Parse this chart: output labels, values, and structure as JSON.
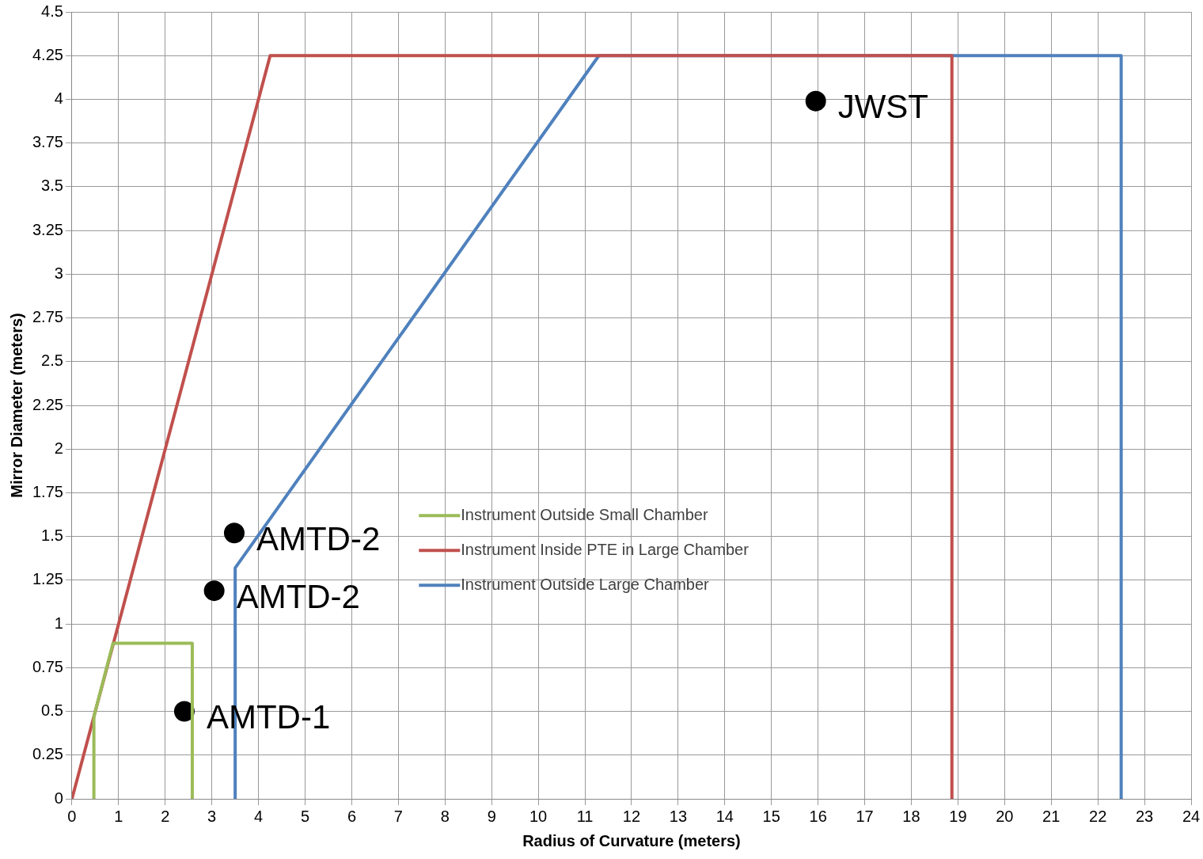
{
  "chart_data": {
    "type": "line",
    "xlabel": "Radius of Curvature (meters)",
    "ylabel": "Mirror Diameter (meters)",
    "xlim": [
      0,
      24
    ],
    "xticks": [
      0,
      1,
      2,
      3,
      4,
      5,
      6,
      7,
      8,
      9,
      10,
      11,
      12,
      13,
      14,
      15,
      16,
      17,
      18,
      19,
      20,
      21,
      22,
      23,
      24
    ],
    "ylim": [
      0,
      4.5
    ],
    "yticks": [
      0,
      0.25,
      0.5,
      0.75,
      1,
      1.25,
      1.5,
      1.75,
      2,
      2.25,
      2.5,
      2.75,
      3,
      3.25,
      3.5,
      3.75,
      4,
      4.25,
      4.5
    ],
    "grid": true,
    "legend": "center",
    "marker": "none",
    "line_style": "solid",
    "series": [
      {
        "name": "Instrument Outside Small Chamber",
        "color": "#9bbb59",
        "x": [
          0.47,
          0.47,
          0.88,
          2.58,
          2.58
        ],
        "values": [
          0,
          0.47,
          0.89,
          0.89,
          0
        ]
      },
      {
        "name": "Instrument Inside PTE in Large Chamber",
        "color": "#c0504d",
        "x": [
          0,
          4.25,
          18.87,
          18.87
        ],
        "values": [
          0,
          4.25,
          4.25,
          0
        ]
      },
      {
        "name": "Instrument Outside Large Chamber",
        "color": "#4f81bd",
        "x": [
          3.5,
          3.5,
          11.3,
          22.5,
          22.5
        ],
        "values": [
          0,
          1.32,
          4.25,
          4.25,
          0
        ]
      },
      {
        "type": "scatter",
        "marker": "circle",
        "color": "#000000",
        "x": [
          2.41,
          3.05,
          3.48,
          15.95
        ],
        "values": [
          0.5,
          1.19,
          1.52,
          3.99
        ]
      }
    ],
    "annotations": [
      {
        "text": "AMTD-1",
        "x": 2.41,
        "y": 0.5
      },
      {
        "text": "AMTD-2",
        "x": 3.05,
        "y": 1.19
      },
      {
        "text": "AMTD-2",
        "x": 3.48,
        "y": 1.52
      },
      {
        "text": "JWST",
        "x": 15.95,
        "y": 3.99
      }
    ]
  }
}
